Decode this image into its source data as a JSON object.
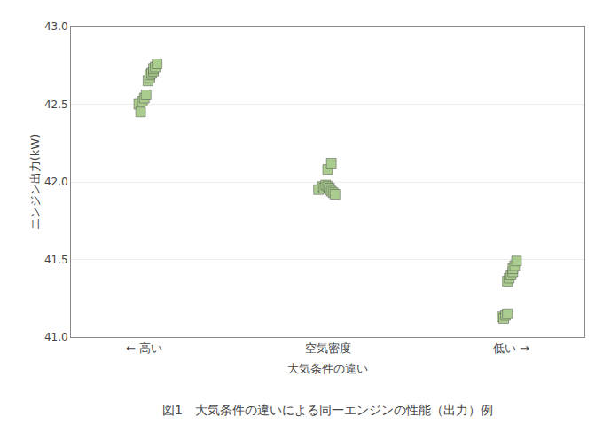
{
  "chart_data": {
    "type": "scatter",
    "xlabel": "大気条件の違い",
    "ylabel": "エンジン出力(kW)",
    "annotations": [
      "図1　大気条件の違いによる同一エンジンの性能（出力）例"
    ],
    "xlim": [
      0.6,
      3.4
    ],
    "xticks": [
      {
        "value": 1,
        "label": "← 高い"
      },
      {
        "value": 2,
        "label": "空気密度"
      },
      {
        "value": 3,
        "label": "低い →"
      }
    ],
    "ylim": [
      41.0,
      43.0
    ],
    "yticks": [
      {
        "value": 41.0,
        "label": "41.0"
      },
      {
        "value": 41.5,
        "label": "41.5"
      },
      {
        "value": 42.0,
        "label": "42.0"
      },
      {
        "value": 42.5,
        "label": "42.5"
      },
      {
        "value": 43.0,
        "label": "43.0"
      }
    ],
    "grid": "y",
    "marker": "square",
    "series": [
      {
        "color": "#8FBC6A",
        "x": [
          0.97,
          0.99,
          1.0,
          1.01,
          1.02,
          1.03,
          1.03,
          1.04,
          1.05,
          1.05,
          1.06,
          1.07,
          0.98
        ],
        "values": [
          42.5,
          42.52,
          42.54,
          42.56,
          42.65,
          42.67,
          42.69,
          42.7,
          42.71,
          42.73,
          42.74,
          42.76,
          42.45
        ]
      },
      {
        "color": "#8FBC6A",
        "x": [
          1.95,
          1.97,
          1.98,
          1.99,
          2.0,
          2.01,
          2.01,
          2.02,
          2.03,
          2.04,
          2.0,
          2.02
        ],
        "values": [
          41.95,
          41.97,
          41.96,
          41.98,
          41.97,
          41.96,
          41.95,
          41.94,
          41.93,
          41.92,
          42.08,
          42.12
        ]
      },
      {
        "color": "#8FBC6A",
        "x": [
          2.95,
          2.96,
          2.97,
          2.98,
          2.98,
          2.99,
          3.0,
          3.01,
          3.01,
          3.02,
          3.03
        ],
        "values": [
          41.13,
          41.12,
          41.14,
          41.15,
          41.36,
          41.38,
          41.4,
          41.42,
          41.44,
          41.46,
          41.49
        ]
      }
    ]
  }
}
